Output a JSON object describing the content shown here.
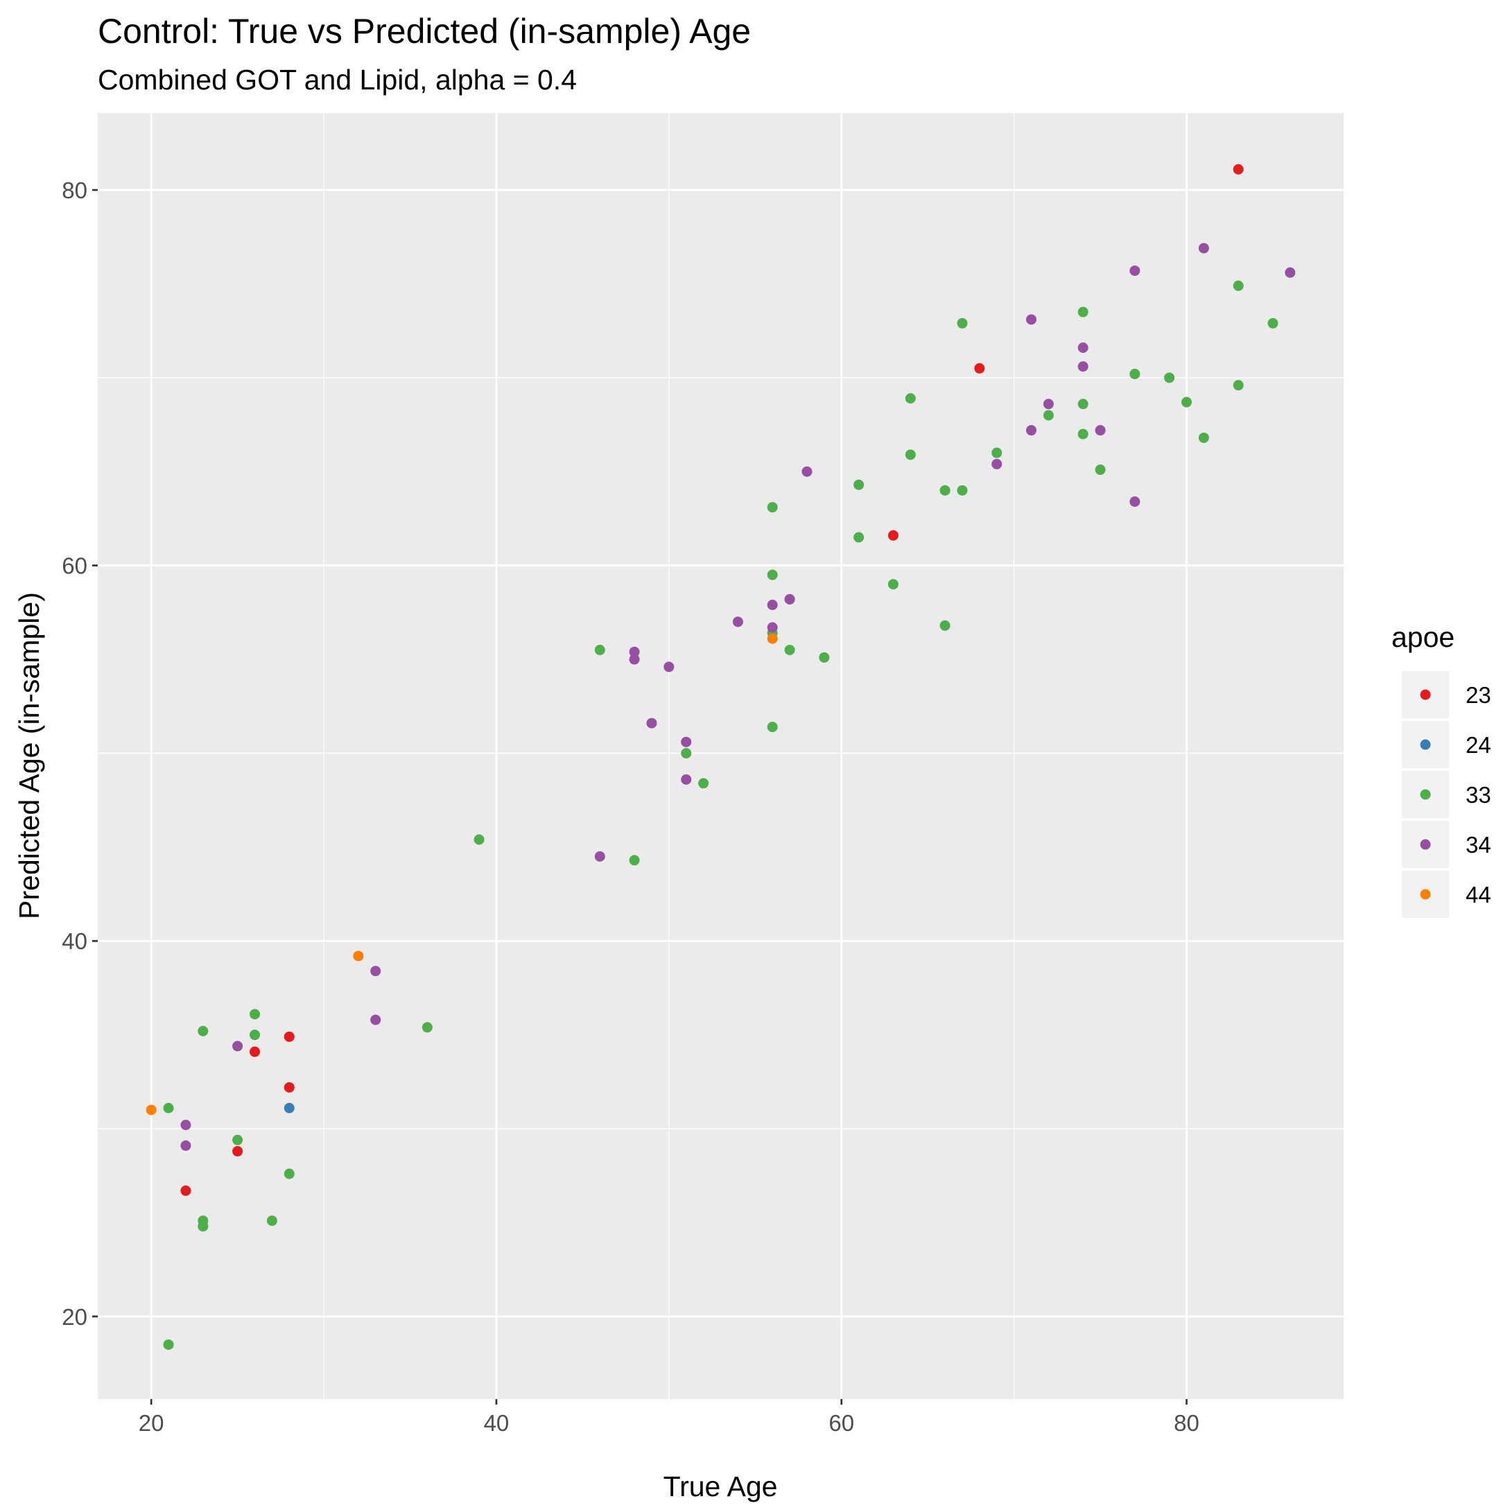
{
  "chart_data": {
    "type": "scatter",
    "title": "Control: True vs Predicted (in-sample) Age",
    "subtitle": "Combined GOT and Lipid, alpha = 0.4",
    "xlabel": "True Age",
    "ylabel": "Predicted Age (in-sample)",
    "xlim": [
      16.9,
      89.1
    ],
    "ylim": [
      15.6,
      84.1
    ],
    "x_ticks": [
      20,
      40,
      60,
      80
    ],
    "y_ticks": [
      20,
      40,
      60,
      80
    ],
    "grid": true,
    "legend": {
      "title": "apoe",
      "position": "right"
    },
    "series": [
      {
        "name": "23",
        "color": "#E41A1C",
        "points": [
          {
            "x": 83,
            "y": 81.1
          },
          {
            "x": 68,
            "y": 70.5
          },
          {
            "x": 63,
            "y": 61.6
          },
          {
            "x": 28,
            "y": 34.9
          },
          {
            "x": 26,
            "y": 34.1
          },
          {
            "x": 28,
            "y": 32.2
          },
          {
            "x": 25,
            "y": 28.8
          },
          {
            "x": 22,
            "y": 26.7
          }
        ]
      },
      {
        "name": "24",
        "color": "#377EB8",
        "points": [
          {
            "x": 28,
            "y": 31.1
          }
        ]
      },
      {
        "name": "33",
        "color": "#4DAF4A",
        "points": [
          {
            "x": 83,
            "y": 74.9
          },
          {
            "x": 85,
            "y": 72.9
          },
          {
            "x": 67,
            "y": 72.9
          },
          {
            "x": 74,
            "y": 73.5
          },
          {
            "x": 77,
            "y": 70.2
          },
          {
            "x": 79,
            "y": 70.0
          },
          {
            "x": 83,
            "y": 69.6
          },
          {
            "x": 64,
            "y": 68.9
          },
          {
            "x": 74,
            "y": 68.6
          },
          {
            "x": 80,
            "y": 68.7
          },
          {
            "x": 72,
            "y": 68.0
          },
          {
            "x": 74,
            "y": 67.0
          },
          {
            "x": 81,
            "y": 66.8
          },
          {
            "x": 69,
            "y": 66.0
          },
          {
            "x": 64,
            "y": 65.9
          },
          {
            "x": 75,
            "y": 65.1
          },
          {
            "x": 61,
            "y": 64.3
          },
          {
            "x": 66,
            "y": 64.0
          },
          {
            "x": 67,
            "y": 64.0
          },
          {
            "x": 56,
            "y": 63.1
          },
          {
            "x": 61,
            "y": 61.5
          },
          {
            "x": 56,
            "y": 59.5
          },
          {
            "x": 63,
            "y": 59.0
          },
          {
            "x": 57,
            "y": 58.2
          },
          {
            "x": 66,
            "y": 56.8
          },
          {
            "x": 56,
            "y": 56.4
          },
          {
            "x": 46,
            "y": 55.5
          },
          {
            "x": 57,
            "y": 55.5
          },
          {
            "x": 59,
            "y": 55.1
          },
          {
            "x": 56,
            "y": 51.4
          },
          {
            "x": 51,
            "y": 50.0
          },
          {
            "x": 52,
            "y": 48.4
          },
          {
            "x": 39,
            "y": 45.4
          },
          {
            "x": 48,
            "y": 44.3
          },
          {
            "x": 26,
            "y": 36.1
          },
          {
            "x": 36,
            "y": 35.4
          },
          {
            "x": 23,
            "y": 35.2
          },
          {
            "x": 26,
            "y": 35.0
          },
          {
            "x": 21,
            "y": 31.1
          },
          {
            "x": 25,
            "y": 29.4
          },
          {
            "x": 28,
            "y": 27.6
          },
          {
            "x": 23,
            "y": 25.1
          },
          {
            "x": 27,
            "y": 25.1
          },
          {
            "x": 23,
            "y": 24.8
          },
          {
            "x": 21,
            "y": 18.5
          }
        ]
      },
      {
        "name": "34",
        "color": "#984EA3",
        "points": [
          {
            "x": 81,
            "y": 76.9
          },
          {
            "x": 77,
            "y": 75.7
          },
          {
            "x": 86,
            "y": 75.6
          },
          {
            "x": 71,
            "y": 73.1
          },
          {
            "x": 74,
            "y": 71.6
          },
          {
            "x": 74,
            "y": 70.6
          },
          {
            "x": 72,
            "y": 68.6
          },
          {
            "x": 71,
            "y": 67.2
          },
          {
            "x": 75,
            "y": 67.2
          },
          {
            "x": 69,
            "y": 65.4
          },
          {
            "x": 58,
            "y": 65.0
          },
          {
            "x": 77,
            "y": 63.4
          },
          {
            "x": 57,
            "y": 58.2
          },
          {
            "x": 56,
            "y": 57.9
          },
          {
            "x": 54,
            "y": 57.0
          },
          {
            "x": 56,
            "y": 56.7
          },
          {
            "x": 48,
            "y": 55.4
          },
          {
            "x": 48,
            "y": 55.0
          },
          {
            "x": 50,
            "y": 54.6
          },
          {
            "x": 49,
            "y": 51.6
          },
          {
            "x": 51,
            "y": 50.6
          },
          {
            "x": 51,
            "y": 48.6
          },
          {
            "x": 46,
            "y": 44.5
          },
          {
            "x": 33,
            "y": 38.4
          },
          {
            "x": 33,
            "y": 35.8
          },
          {
            "x": 25,
            "y": 34.4
          },
          {
            "x": 22,
            "y": 30.2
          },
          {
            "x": 22,
            "y": 29.1
          }
        ]
      },
      {
        "name": "44",
        "color": "#FF7F00",
        "points": [
          {
            "x": 56,
            "y": 56.1
          },
          {
            "x": 32,
            "y": 39.2
          },
          {
            "x": 20,
            "y": 31.0
          }
        ]
      }
    ]
  }
}
